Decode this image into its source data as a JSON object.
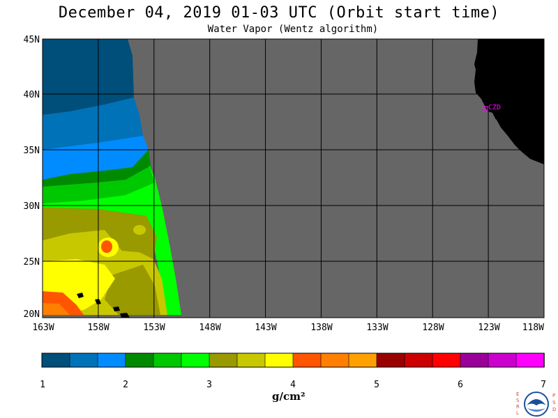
{
  "title": "December 04, 2019  01-03 UTC  (Orbit start time)",
  "subtitle": "Water Vapor (Wentz algorithm)",
  "map": {
    "lat_labels": [
      "45N",
      "40N",
      "35N",
      "30N",
      "25N",
      "20N"
    ],
    "lon_labels": [
      "163W",
      "158W",
      "153W",
      "148W",
      "143W",
      "138W",
      "133W",
      "128W",
      "123W",
      "118W"
    ],
    "station_label": "CZD",
    "colors": {
      "no_data": "#666666",
      "land": "#000000",
      "station": "#ff00ff"
    }
  },
  "colorbar": {
    "tick_labels": [
      "1",
      "2",
      "3",
      "4",
      "5",
      "6",
      "7"
    ],
    "units": "g/cm²",
    "colors": [
      "#004e7a",
      "#0072b8",
      "#008cff",
      "#008a00",
      "#00c800",
      "#00ff00",
      "#999900",
      "#c8c800",
      "#ffff00",
      "#ff5500",
      "#ff7f00",
      "#ffa000",
      "#990000",
      "#cc0000",
      "#ff0000",
      "#990099",
      "#cc00cc",
      "#ff00ff"
    ]
  },
  "logo": {
    "left_letters": "ESRL",
    "right_letters": "PSD",
    "name": "NOAA"
  }
}
